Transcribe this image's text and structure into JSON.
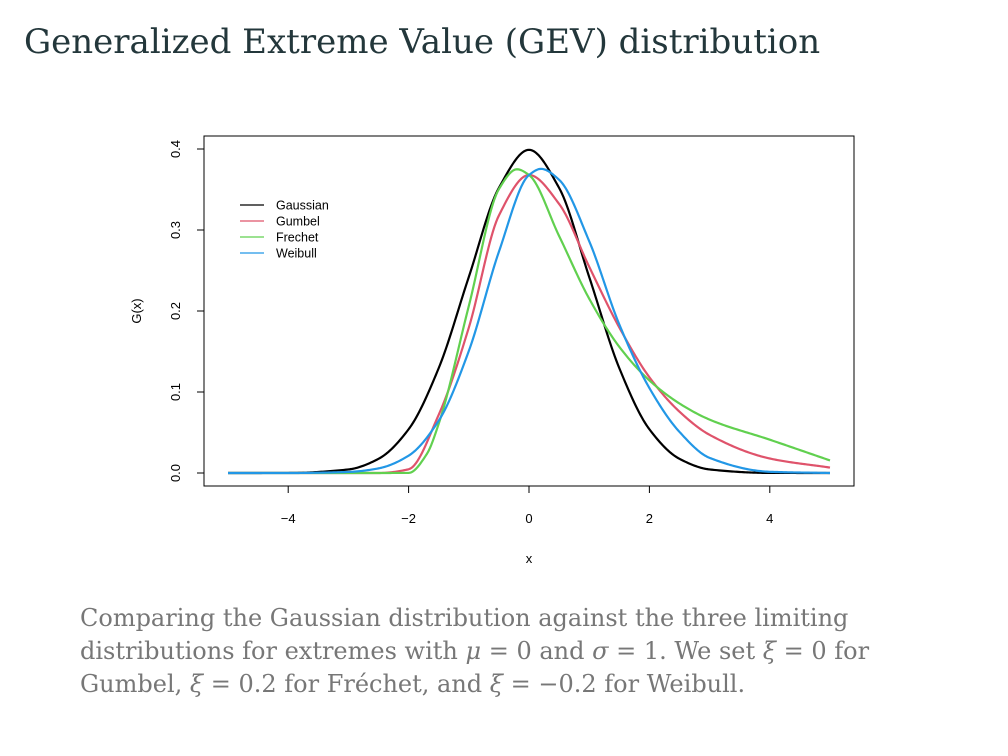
{
  "slide": {
    "title": "Generalized Extreme Value (GEV) distribution",
    "caption_parts": [
      "Comparing the Gaussian distribution against the three limiting distributions for extremes with ",
      "μ",
      " = 0 and ",
      "σ",
      " = 1. We set ",
      "ξ",
      " = 0 for Gumbel, ",
      "ξ",
      " = 0.2 for Fréchet, and ",
      "ξ",
      " = −0.2 for Weibull."
    ]
  },
  "chart_data": {
    "type": "line",
    "xlabel": "x",
    "ylabel": "G(x)",
    "xlim": [
      -5,
      5
    ],
    "ylim": [
      0,
      0.4
    ],
    "x_ticks": [
      -4,
      -2,
      0,
      2,
      4
    ],
    "x_tick_labels": [
      "−4",
      "−2",
      "0",
      "2",
      "4"
    ],
    "y_ticks": [
      0,
      0.1,
      0.2,
      0.3,
      0.4
    ],
    "y_tick_labels": [
      "0.0",
      "0.1",
      "0.2",
      "0.3",
      "0.4"
    ],
    "legend_position": "top-left",
    "series": [
      {
        "name": "Gaussian",
        "color": "#000000",
        "x": [
          -5,
          -4,
          -3,
          -2.5,
          -2,
          -1.5,
          -1,
          -0.5,
          0,
          0.5,
          1,
          1.5,
          2,
          2.5,
          3,
          4,
          5
        ],
        "values": [
          0.0,
          0.0001,
          0.0044,
          0.0175,
          0.054,
          0.1295,
          0.242,
          0.352,
          0.399,
          0.352,
          0.242,
          0.1295,
          0.054,
          0.0175,
          0.0044,
          0.0001,
          0.0
        ]
      },
      {
        "name": "Gumbel",
        "color": "#df536b",
        "x": [
          -5,
          -3,
          -2.5,
          -2,
          -1.5,
          -1,
          -0.5,
          0,
          0.5,
          1,
          1.5,
          2,
          2.5,
          3,
          4,
          5
        ],
        "values": [
          0.0,
          0.0,
          0.0,
          0.0046,
          0.0719,
          0.1794,
          0.3179,
          0.3679,
          0.3322,
          0.2546,
          0.1797,
          0.1182,
          0.0757,
          0.0471,
          0.0179,
          0.0067
        ]
      },
      {
        "name": "Frechet",
        "color": "#61d04f",
        "x": [
          -5,
          -3,
          -2,
          -1.7,
          -1.5,
          -1,
          -0.5,
          -0.2,
          0,
          0.5,
          1,
          1.5,
          2,
          2.5,
          3,
          4,
          5
        ],
        "values": [
          0.0,
          0.0,
          0.0001,
          0.0231,
          0.0607,
          0.2061,
          0.3505,
          0.375,
          0.3679,
          0.2926,
          0.2152,
          0.1558,
          0.1143,
          0.0858,
          0.0659,
          0.0411,
          0.0155
        ]
      },
      {
        "name": "Weibull",
        "color": "#2297e6",
        "x": [
          -5,
          -4,
          -3,
          -2.5,
          -2,
          -1.5,
          -1,
          -0.5,
          0,
          0.2,
          0.5,
          1,
          1.5,
          2,
          2.5,
          3,
          4,
          5
        ],
        "values": [
          0.0,
          0.0,
          0.0013,
          0.0057,
          0.0214,
          0.0646,
          0.1506,
          0.2731,
          0.3679,
          0.3755,
          0.362,
          0.2862,
          0.1834,
          0.1049,
          0.0507,
          0.0187,
          0.0015,
          0.0
        ]
      }
    ]
  }
}
